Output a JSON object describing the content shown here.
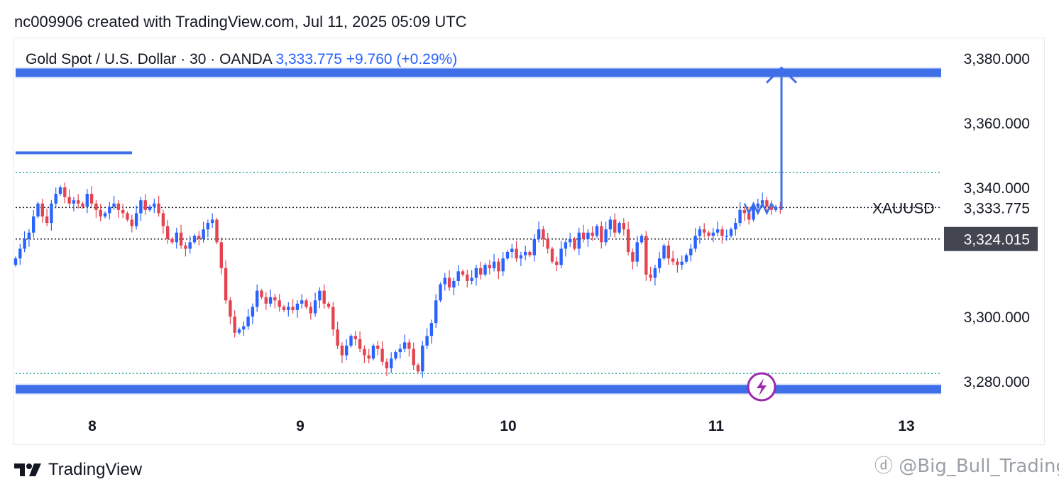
{
  "header": {
    "text": "nc009906 created with TradingView.com, Jul 11, 2025 05:09 UTC"
  },
  "legend": {
    "symbol": "Gold Spot / U.S. Dollar · 30 · OANDA",
    "price": "3,333.775",
    "change": "+9.760 (+0.29%)"
  },
  "footer": {
    "brand": "TradingView",
    "watermark": "@Big_Bull_Trading)"
  },
  "colors": {
    "up": "#2962ff",
    "down": "#e5434f",
    "drawing": "#3f6fe8",
    "dotted": "#26a69a",
    "label_bg": "#434651"
  },
  "chart_data": {
    "type": "candlestick",
    "symbol": "XAUUSD",
    "timeframe": "30",
    "ylim": [
      3274,
      3391
    ],
    "y_ticks": [
      "3,380.000",
      "3,360.000",
      "3,340.000",
      "3,300.000",
      "3,280.000"
    ],
    "x_ticks": [
      "8",
      "9",
      "10",
      "11",
      "13"
    ],
    "last_price": {
      "label": "XAUUSD",
      "value": "3,333.775"
    },
    "crosshair_price": {
      "value": "3,324.015",
      "y": 3324.015
    },
    "horizontal_levels": [
      {
        "kind": "zone",
        "y": 3375.5,
        "color": "#3f6fe8"
      },
      {
        "kind": "zone",
        "y": 3277.5,
        "color": "#3f6fe8"
      },
      {
        "kind": "dotted",
        "y": 3344.6,
        "color": "#26a69a"
      },
      {
        "kind": "dotted",
        "y": 3282.4,
        "color": "#26a69a"
      },
      {
        "kind": "dotted",
        "y": 3333.775,
        "color": "#131722"
      },
      {
        "kind": "dotted",
        "y": 3324.015,
        "color": "#131722"
      },
      {
        "kind": "segment",
        "y": 3350.7,
        "color": "#3f6fe8"
      }
    ],
    "closes": [
      3318,
      3321,
      3324,
      3326,
      3331,
      3335,
      3331,
      3329,
      3335,
      3338,
      3340,
      3337,
      3335,
      3336,
      3335,
      3334,
      3338,
      3335,
      3333,
      3331,
      3332,
      3334,
      3335,
      3333,
      3332,
      3330,
      3328,
      3332,
      3336,
      3333,
      3334,
      3335,
      3332,
      3328,
      3324,
      3323,
      3326,
      3322,
      3321,
      3323,
      3325,
      3324,
      3327,
      3329,
      3330,
      3323,
      3315,
      3305,
      3300,
      3295,
      3296,
      3297,
      3300,
      3303,
      3308,
      3306,
      3304,
      3306,
      3305,
      3303,
      3302,
      3303,
      3302,
      3304,
      3305,
      3303,
      3301,
      3305,
      3308,
      3304,
      3303,
      3296,
      3291,
      3288,
      3291,
      3294,
      3293,
      3290,
      3288,
      3287,
      3291,
      3290,
      3286,
      3284,
      3287,
      3289,
      3290,
      3292,
      3290,
      3285,
      3283,
      3291,
      3294,
      3298,
      3305,
      3310,
      3312,
      3309,
      3311,
      3314,
      3313,
      3311,
      3312,
      3315,
      3313,
      3316,
      3315,
      3317,
      3314,
      3318,
      3320,
      3321,
      3318,
      3319,
      3320,
      3319,
      3324,
      3327,
      3324,
      3321,
      3317,
      3316,
      3321,
      3323,
      3324,
      3321,
      3326,
      3324,
      3326,
      3325,
      3328,
      3323,
      3327,
      3330,
      3326,
      3329,
      3327,
      3320,
      3317,
      3323,
      3325,
      3313,
      3312,
      3315,
      3318,
      3322,
      3318,
      3317,
      3316,
      3317,
      3319,
      3321,
      3325,
      3327,
      3326,
      3325,
      3326,
      3327,
      3325,
      3325,
      3327,
      3329,
      3333,
      3332,
      3330,
      3334,
      3335,
      3336,
      3334,
      3333,
      3334,
      3333.775
    ],
    "projection": {
      "zigzag": [
        [
          163,
          3335
        ],
        [
          164,
          3332
        ],
        [
          165,
          3335
        ],
        [
          166,
          3332
        ],
        [
          167,
          3335
        ],
        [
          168,
          3332
        ],
        [
          169,
          3335
        ],
        [
          170,
          3333
        ]
      ],
      "arrow": {
        "from": 3333,
        "to": 3377
      }
    },
    "logo": "lightning-icon"
  }
}
